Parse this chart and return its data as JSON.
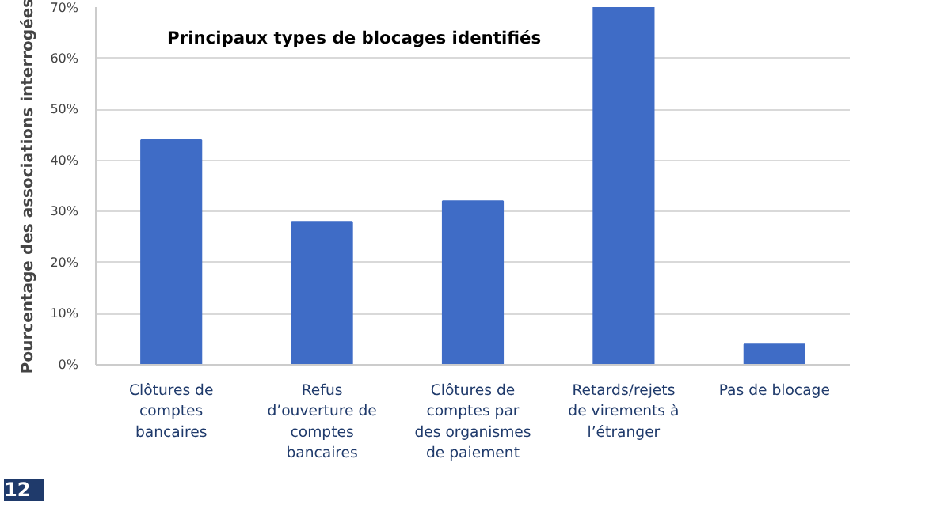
{
  "chart_data": {
    "type": "bar",
    "title": "Principaux types de blocages identifiés",
    "ylabel": "Pourcentage des associations interrogées",
    "categories": [
      "Clôtures de comptes bancaires",
      "Refus d’ouverture de comptes bancaires",
      "Clôtures de comptes par des organismes de paiement",
      "Retards/rejets de virements à l’étranger",
      "Pas de blocage"
    ],
    "values": [
      44,
      28,
      32,
      70,
      4
    ],
    "color": "#3f6cc6",
    "ylim": [
      0,
      70
    ],
    "yticks": [
      {
        "value": 0,
        "label": "0%"
      },
      {
        "value": 10,
        "label": "10%"
      },
      {
        "value": 20,
        "label": "20%"
      },
      {
        "value": 30,
        "label": "30%"
      },
      {
        "value": 40,
        "label": "40%"
      },
      {
        "value": 50,
        "label": "50%"
      },
      {
        "value": 60,
        "label": "60%"
      },
      {
        "value": 70,
        "label": "70%"
      }
    ],
    "grid": "y",
    "annotations": [
      "12"
    ]
  }
}
